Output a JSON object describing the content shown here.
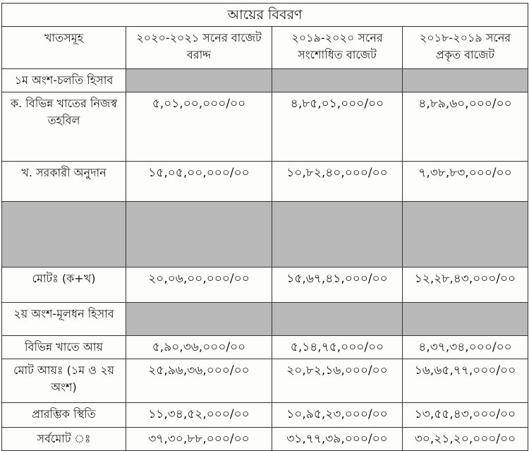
{
  "title": "আয়ের বিবরণ",
  "headers": [
    "খাতসমূহ",
    "২০২০-২০২১ সনের বাজেট বরাদ্দ",
    "২০১৯-২০২০ সনের সংশোধিত বাজেট",
    "২০১৮-২০১৯ সনের প্রকৃত বাজেট"
  ],
  "rows": [
    {
      "label": "১ম অংশ-চলতি হিসাব",
      "values": [
        "",
        "",
        ""
      ]
    },
    {
      "label": "ক. বিভিন্ন খাতের নিজস্ব তহবিল",
      "values": [
        "৫,০১,০০,০০০/০০",
        "৪,৮৫,০১,০০০/০০",
        "৪,৮৯,৬০,০০০/০০"
      ]
    },
    {
      "label": "খ. সরকারী অনুদান",
      "values": [
        "১৫,০৫,০০,০০০/০০",
        "১০,৮২,৪০,০০০/০০",
        "৭,৩৮,৮৩,০০০/০০"
      ]
    },
    {
      "label": "",
      "values": [
        "",
        "",
        ""
      ]
    },
    {
      "label": "মোটঃ (ক+খ)",
      "values": [
        "২০,০৬,০০,০০০/০০",
        "১৫,৬৭,৪১,০০০/০০",
        "১২,২৮,৪৩,০০০/০০"
      ]
    },
    {
      "label": "২য় অংশ-মূলধন হিসাব",
      "values": [
        "",
        "",
        ""
      ]
    },
    {
      "label": "বিভিন্ন খাতে আয়",
      "values": [
        "৫,৯০,৩৬,০০০/০০",
        "৫,১৪,৭৫,০০০/০০",
        "৪,৩৭,৩৪,০০০/০০"
      ]
    },
    {
      "label": "মোট আয়ঃ (১ম ও ২য় অংশ)",
      "values": [
        "২৫,৯৬,৩৬,০০০/০০",
        "২০,৮২,১৬,০০০/০০",
        "১৬,৬৫,৭৭,০০০/০০"
      ]
    },
    {
      "label": "প্রারম্ভিক স্থিতি",
      "values": [
        "১১,৩৪,৫২,০০০/০০",
        "১০,৯৫,২৩,০০০/০০",
        "১৩,৫৫,৪৩,০০০/০০"
      ]
    },
    {
      "label": "সর্বমোট ঃ",
      "values": [
        "৩৭,৩০,৮৮,০০০/০০",
        "৩১,৭৭,৩৯,০০০/০০",
        "৩০,২১,২০,০০০/০০"
      ]
    }
  ],
  "colors": {
    "shaded_cell": "#b9b9b9",
    "border": "#333333"
  }
}
